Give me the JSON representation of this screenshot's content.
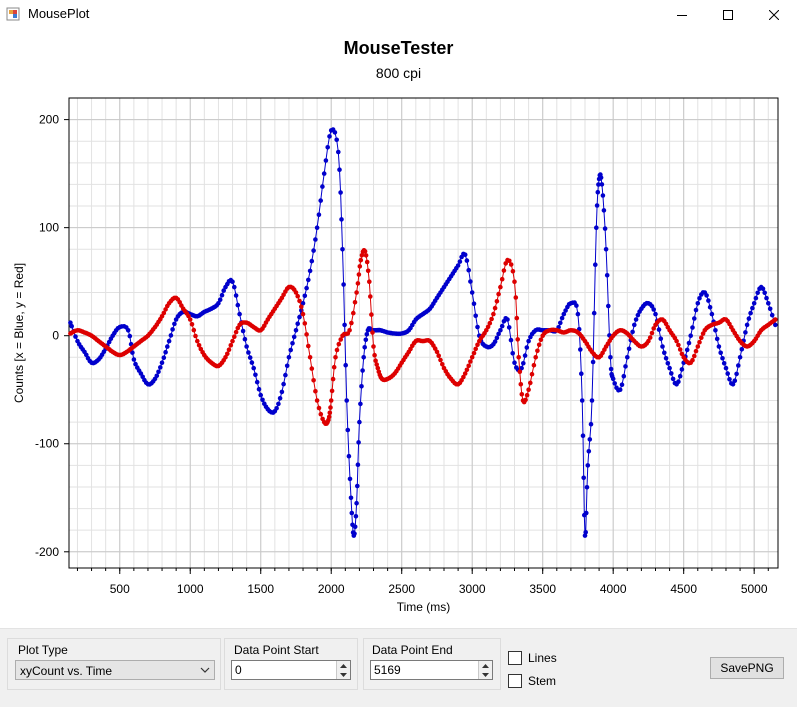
{
  "window": {
    "title": "MousePlot"
  },
  "chart": {
    "title": "MouseTester",
    "subtitle": "800 cpi"
  },
  "controls": {
    "plot_type_label": "Plot Type",
    "plot_type_value": "xyCount vs. Time",
    "data_point_start_label": "Data Point Start",
    "data_point_start_value": "0",
    "data_point_end_label": "Data Point End",
    "data_point_end_value": "5169",
    "lines_label": "Lines",
    "stem_label": "Stem",
    "save_label": "SavePNG"
  },
  "icons": {
    "app": "mouseplot-app-icon",
    "minimize": "minimize-icon",
    "maximize": "maximize-icon",
    "close": "close-icon",
    "dropdown": "chevron-down-icon"
  },
  "colors": {
    "x_series": "#0000cc",
    "y_series": "#dd0000",
    "grid": "#e2e2e2"
  },
  "chart_data": {
    "type": "scatter",
    "xlabel": "Time (ms)",
    "ylabel": "Counts [x = Blue, y = Red]",
    "xlim": [
      140,
      5169
    ],
    "ylim": [
      -215,
      220
    ],
    "xticks": [
      500,
      1000,
      1500,
      2000,
      2500,
      3000,
      3500,
      4000,
      4500,
      5000
    ],
    "yticks": [
      -200,
      -100,
      0,
      100,
      200
    ],
    "grid": true,
    "series": [
      {
        "color": "#0000cc",
        "x": [
          150,
          200,
          250,
          300,
          350,
          400,
          450,
          500,
          560,
          600,
          650,
          700,
          750,
          800,
          850,
          900,
          950,
          1000,
          1050,
          1100,
          1150,
          1200,
          1250,
          1300,
          1350,
          1400,
          1450,
          1500,
          1550,
          1600,
          1650,
          1700,
          1750,
          1800,
          1850,
          1900,
          1950,
          2000,
          2050,
          2080,
          2110,
          2140,
          2160,
          2180,
          2200,
          2230,
          2260,
          2290,
          2320,
          2350,
          2400,
          2450,
          2500,
          2550,
          2600,
          2650,
          2700,
          2750,
          2800,
          2850,
          2900,
          2950,
          3000,
          3050,
          3100,
          3150,
          3200,
          3250,
          3300,
          3350,
          3400,
          3450,
          3500,
          3550,
          3600,
          3650,
          3700,
          3750,
          3780,
          3800,
          3820,
          3850,
          3880,
          3900,
          3920,
          3950,
          3980,
          4000,
          4050,
          4100,
          4150,
          4200,
          4250,
          4300,
          4350,
          4400,
          4450,
          4500,
          4550,
          4600,
          4650,
          4700,
          4750,
          4800,
          4850,
          4900,
          4950,
          5000,
          5050,
          5100,
          5150
        ],
        "y": [
          12,
          -5,
          -15,
          -25,
          -22,
          -12,
          0,
          8,
          5,
          -22,
          -35,
          -45,
          -40,
          -25,
          -5,
          15,
          22,
          20,
          18,
          22,
          25,
          30,
          45,
          50,
          20,
          -10,
          -30,
          -55,
          -68,
          -70,
          -52,
          -20,
          5,
          30,
          60,
          100,
          150,
          190,
          170,
          80,
          -60,
          -150,
          -185,
          -155,
          -80,
          -20,
          5,
          5,
          5,
          5,
          3,
          2,
          2,
          5,
          15,
          20,
          25,
          35,
          45,
          55,
          65,
          75,
          40,
          0,
          -10,
          -8,
          5,
          15,
          -25,
          -30,
          -5,
          5,
          5,
          5,
          5,
          20,
          30,
          20,
          -60,
          -185,
          -120,
          -60,
          100,
          145,
          140,
          80,
          -20,
          -40,
          -50,
          -20,
          10,
          25,
          30,
          20,
          -10,
          -30,
          -45,
          -25,
          0,
          30,
          40,
          20,
          -10,
          -30,
          -45,
          -20,
          10,
          30,
          45,
          30,
          10
        ]
      },
      {
        "color": "#dd0000",
        "x": [
          150,
          200,
          250,
          300,
          350,
          400,
          450,
          500,
          550,
          600,
          650,
          700,
          750,
          800,
          850,
          900,
          950,
          1000,
          1050,
          1100,
          1150,
          1200,
          1250,
          1300,
          1350,
          1400,
          1450,
          1500,
          1550,
          1600,
          1650,
          1700,
          1750,
          1800,
          1850,
          1900,
          1950,
          1980,
          2000,
          2030,
          2080,
          2130,
          2180,
          2210,
          2240,
          2270,
          2300,
          2330,
          2360,
          2400,
          2450,
          2500,
          2550,
          2600,
          2650,
          2700,
          2750,
          2800,
          2850,
          2900,
          2950,
          3000,
          3050,
          3100,
          3150,
          3200,
          3250,
          3300,
          3330,
          3360,
          3400,
          3450,
          3500,
          3550,
          3600,
          3650,
          3700,
          3750,
          3800,
          3850,
          3900,
          3950,
          4000,
          4050,
          4100,
          4150,
          4200,
          4250,
          4300,
          4350,
          4400,
          4450,
          4500,
          4550,
          4600,
          4650,
          4700,
          4750,
          4800,
          4850,
          4900,
          4950,
          5000,
          5050,
          5100,
          5150
        ],
        "y": [
          2,
          5,
          3,
          0,
          -5,
          -10,
          -15,
          -18,
          -15,
          -10,
          -5,
          0,
          8,
          18,
          30,
          35,
          25,
          15,
          -5,
          -18,
          -25,
          -28,
          -20,
          -5,
          10,
          12,
          8,
          5,
          15,
          25,
          35,
          45,
          40,
          20,
          -20,
          -60,
          -80,
          -78,
          -60,
          -20,
          0,
          5,
          40,
          70,
          78,
          50,
          -10,
          -30,
          -40,
          -40,
          -35,
          -25,
          -15,
          -5,
          -5,
          -5,
          -15,
          -30,
          -40,
          -45,
          -35,
          -20,
          -5,
          5,
          20,
          45,
          70,
          50,
          -20,
          -60,
          -50,
          -20,
          0,
          5,
          5,
          3,
          5,
          3,
          -5,
          -15,
          -20,
          -10,
          0,
          5,
          2,
          -5,
          -10,
          -5,
          10,
          15,
          5,
          -5,
          -20,
          -25,
          -10,
          5,
          10,
          12,
          15,
          5,
          -5,
          -10,
          -5,
          5,
          10,
          15
        ]
      }
    ]
  }
}
